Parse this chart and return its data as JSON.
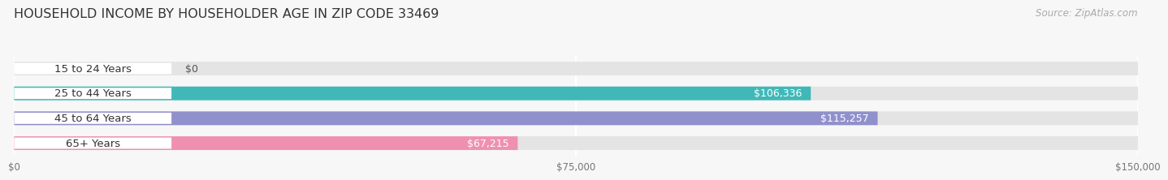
{
  "title": "HOUSEHOLD INCOME BY HOUSEHOLDER AGE IN ZIP CODE 33469",
  "source": "Source: ZipAtlas.com",
  "categories": [
    "15 to 24 Years",
    "25 to 44 Years",
    "45 to 64 Years",
    "65+ Years"
  ],
  "values": [
    0,
    106336,
    115257,
    67215
  ],
  "bar_colors": [
    "#c4a8d0",
    "#40b8b8",
    "#9090cc",
    "#f090b0"
  ],
  "value_labels": [
    "$0",
    "$106,336",
    "$115,257",
    "$67,215"
  ],
  "xlim": [
    0,
    150000
  ],
  "xticks": [
    0,
    75000,
    150000
  ],
  "xtick_labels": [
    "$0",
    "$75,000",
    "$150,000"
  ],
  "background_color": "#f7f7f7",
  "bar_background_color": "#e4e4e4",
  "title_fontsize": 11.5,
  "source_fontsize": 8.5,
  "bar_height": 0.55,
  "label_fontsize": 9.5,
  "value_fontsize": 9
}
